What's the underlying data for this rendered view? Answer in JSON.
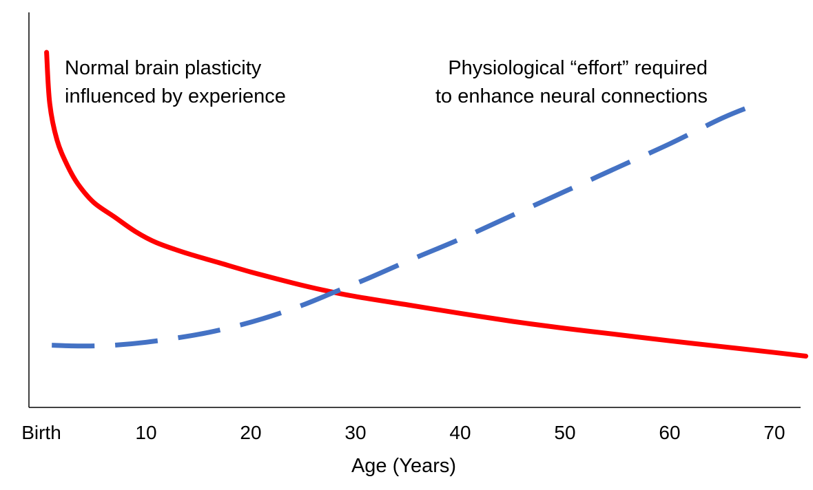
{
  "chart_data": {
    "type": "line",
    "title": "",
    "xlabel": "Age (Years)",
    "ylabel": "",
    "xlim": [
      0,
      73
    ],
    "ylim": [
      0,
      100
    ],
    "grid": false,
    "x_ticks": [
      {
        "value": 0,
        "label": "Birth"
      },
      {
        "value": 10,
        "label": "10"
      },
      {
        "value": 20,
        "label": "20"
      },
      {
        "value": 30,
        "label": "30"
      },
      {
        "value": 40,
        "label": "40"
      },
      {
        "value": 50,
        "label": "50"
      },
      {
        "value": 60,
        "label": "60"
      },
      {
        "value": 70,
        "label": "70"
      }
    ],
    "series": [
      {
        "name": "Normal brain plasticity influenced by experience",
        "color": "#ff0000",
        "style": "solid",
        "x": [
          0.5,
          0.8,
          1.5,
          2.5,
          3.5,
          5,
          7,
          9,
          11,
          14,
          17,
          20,
          24,
          27,
          30,
          35,
          40,
          45,
          50,
          55,
          60,
          65,
          70,
          73
        ],
        "y": [
          97,
          83,
          73,
          66,
          61,
          56,
          52,
          48,
          45,
          42,
          39.5,
          37,
          34,
          32,
          30.3,
          28,
          25.7,
          23.5,
          21.6,
          19.9,
          18.2,
          16.6,
          15,
          14
        ]
      },
      {
        "name": "Physiological “effort” required to enhance neural connections",
        "color": "#4472c4",
        "style": "dashed",
        "x": [
          1,
          3,
          5,
          7,
          10,
          13,
          16,
          19,
          22,
          25,
          28,
          31,
          35,
          40,
          45,
          50,
          55,
          60,
          65,
          68
        ],
        "y": [
          17,
          16.8,
          16.8,
          17,
          17.8,
          19,
          20.5,
          22.5,
          25,
          28,
          31.5,
          35,
          40,
          46,
          52.5,
          59,
          65.5,
          72,
          79,
          82.5
        ]
      }
    ],
    "annotations": [
      {
        "lines": [
          "Normal brain plasticity",
          "influenced by experience"
        ],
        "color": "#000000"
      },
      {
        "lines": [
          "Physiological “effort” required",
          "to enhance neural connections"
        ],
        "color": "#000000"
      }
    ]
  }
}
